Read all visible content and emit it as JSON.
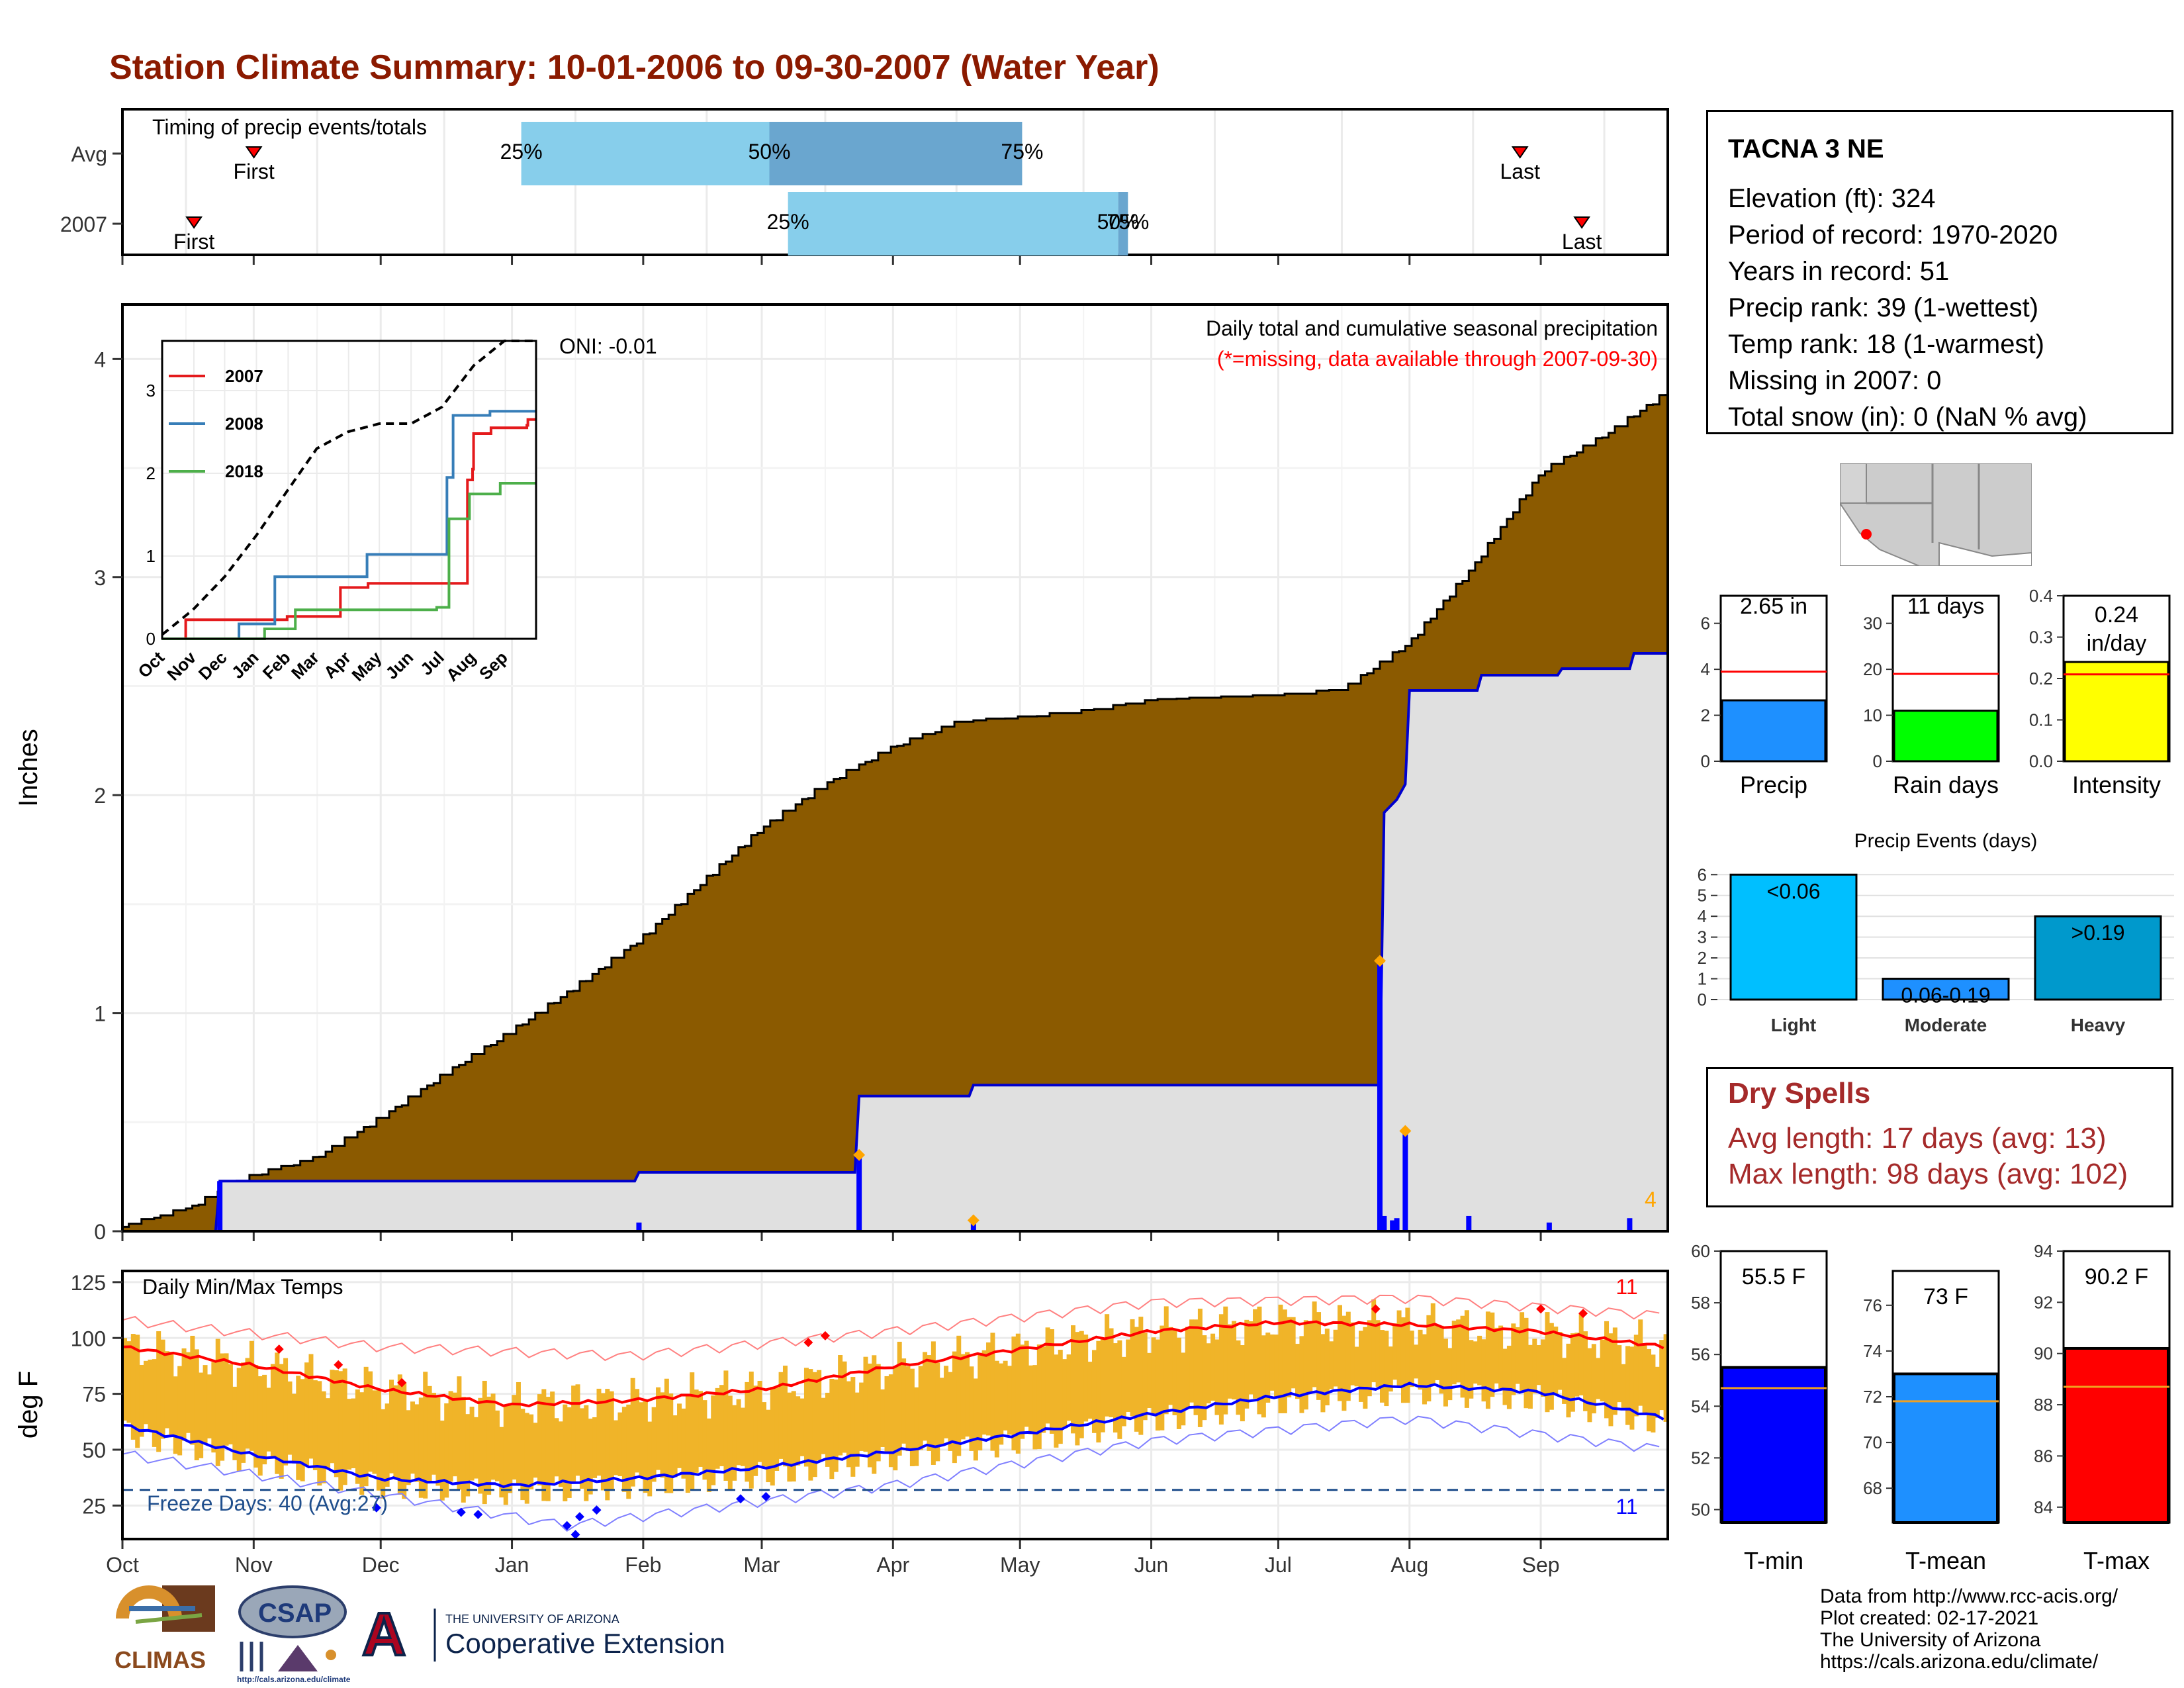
{
  "page": {
    "title": "Station Climate Summary: 10-01-2006 to 09-30-2007 (Water Year)"
  },
  "timing": {
    "title": "Timing of precip events/totals",
    "rows": [
      {
        "label": "Avg",
        "first": 31.05,
        "q25": 94.2,
        "q50": 152.8,
        "q75": 212.5,
        "last": 330.1,
        "first_label": "First",
        "last_label": "Last",
        "q25_label": "25%",
        "q50_label": "50%",
        "q75_label": "75%"
      },
      {
        "label": "2007",
        "first": 16.9,
        "q25": 157.2,
        "q50": 235.2,
        "q75": 237.5,
        "last": 344.7,
        "first_label": "First",
        "last_label": "Last",
        "q25_label": "25%",
        "q50_label": "50%",
        "q75_label": "75%"
      }
    ]
  },
  "main_plot": {
    "ylabel": "Inches",
    "annotation": "Daily total and cumulative seasonal precipitation",
    "missing_note": "(*=missing, data available through 2007-09-30)",
    "oni": "ONI: -0.01",
    "event_count": "4",
    "yticks": [
      "0",
      "1",
      "2",
      "3",
      "4"
    ]
  },
  "inset": {
    "legend": [
      {
        "label": "2007",
        "color": "#e41a1c"
      },
      {
        "label": "2008",
        "color": "#377eb8"
      },
      {
        "label": "2018",
        "color": "#4daf4a"
      }
    ],
    "xticks": [
      "Oct",
      "Nov",
      "Dec",
      "Jan",
      "Feb",
      "Mar",
      "Apr",
      "May",
      "Jun",
      "Jul",
      "Aug",
      "Sep"
    ],
    "yticks": [
      "0",
      "1",
      "2",
      "3"
    ]
  },
  "temp_plot": {
    "ylabel": "deg F",
    "title": "Daily Min/Max Temps",
    "freeze_label": "Freeze Days: 40 (Avg:27)",
    "count_top": "11",
    "count_bottom": "11",
    "yticks": [
      "25",
      "50",
      "75",
      "100",
      "125"
    ],
    "xticks": [
      "Oct",
      "Nov",
      "Dec",
      "Jan",
      "Feb",
      "Mar",
      "Apr",
      "May",
      "Jun",
      "Jul",
      "Aug",
      "Sep"
    ]
  },
  "station": {
    "name": "TACNA 3 NE",
    "lines": [
      "Elevation (ft): 324",
      "Period of record: 1970-2020",
      "Years in record: 51",
      "Precip rank: 39 (1-wettest)",
      "Temp rank: 18 (1-warmest)",
      "Missing in 2007: 0",
      "Total snow (in): 0 (NaN % avg)"
    ]
  },
  "mini_bars": [
    {
      "label": "Precip",
      "value_label": "2.65 in",
      "value": 2.65,
      "avg": 3.9,
      "ymax": 7.2,
      "ticks": [
        "0",
        "2",
        "4",
        "6"
      ],
      "color": "#1e90ff"
    },
    {
      "label": "Rain days",
      "value_label": "11 days",
      "value": 11,
      "avg": 19,
      "ymax": 36,
      "ticks": [
        "0",
        "10",
        "20",
        "30"
      ],
      "color": "#00ff00"
    },
    {
      "label": "Intensity",
      "value_label": "0.24 in/day",
      "value": 0.24,
      "avg": 0.21,
      "ymax": 0.4,
      "ticks": [
        "0.0",
        "0.1",
        "0.2",
        "0.3",
        "0.4"
      ],
      "color": "#ffff00"
    }
  ],
  "events": {
    "title": "Precip Events (days)",
    "categories": [
      "Light",
      "Moderate",
      "Heavy"
    ],
    "values": [
      6,
      1,
      4
    ],
    "labels": [
      "<0.06",
      "0.06-0.19",
      ">0.19"
    ],
    "colors": [
      "#00bfff",
      "#1e90ff",
      "#0099cc"
    ],
    "ticks": [
      "0",
      "1",
      "2",
      "3",
      "4",
      "5",
      "6"
    ]
  },
  "dry_spells": {
    "title": "Dry Spells",
    "avg": "Avg length: 17 days (avg: 13)",
    "max": "Max length: 98 days (avg: 102)"
  },
  "temp_bars": [
    {
      "label": "T-min",
      "value_label": "55.5 F",
      "value": 55.5,
      "avg": 54.7,
      "ymin": 49.5,
      "ymax": 60.0,
      "ticks": [
        "50",
        "52",
        "54",
        "56",
        "58",
        "60"
      ],
      "color": "#0000ff"
    },
    {
      "label": "T-mean",
      "value_label": "73 F",
      "value": 73.0,
      "avg": 71.8,
      "ymin": 66.5,
      "ymax": 77.5,
      "ticks": [
        "68",
        "70",
        "72",
        "74",
        "76"
      ],
      "color": "#1e90ff"
    },
    {
      "label": "T-max",
      "value_label": "90.2 F",
      "value": 90.2,
      "avg": 88.7,
      "ymin": 83.4,
      "ymax": 94.0,
      "ticks": [
        "84",
        "86",
        "88",
        "90",
        "92",
        "94"
      ],
      "color": "#ff0000"
    }
  ],
  "credits": [
    "Data from http://www.rcc-acis.org/",
    "Plot created: 02-17-2021",
    "The University of Arizona",
    "https://cals.arizona.edu/climate/"
  ],
  "logos": {
    "climas": "CLIMAS",
    "csap": "CSAP",
    "csap_url": "http://cals.arizona.edu/climate",
    "ua_small": "THE UNIVERSITY OF ARIZONA",
    "ua_big": "Cooperative Extension",
    "ua_letter": "A"
  },
  "chart_data": [
    {
      "type": "bar",
      "title": "Timing of precip events/totals",
      "categories": [
        "Avg",
        "2007"
      ],
      "series": [
        {
          "name": "First",
          "values": [
            31,
            17
          ]
        },
        {
          "name": "25%",
          "values": [
            94,
            157
          ]
        },
        {
          "name": "50%",
          "values": [
            153,
            235
          ]
        },
        {
          "name": "75%",
          "values": [
            212,
            237
          ]
        },
        {
          "name": "Last",
          "values": [
            330,
            345
          ]
        }
      ]
    },
    {
      "type": "area",
      "title": "Daily total and cumulative seasonal precipitation",
      "ylabel": "Inches",
      "ylim": [
        0,
        4.25
      ],
      "xlabel": "",
      "xlim": [
        0,
        365
      ],
      "series": [
        {
          "name": "Avg cumulative",
          "x": [
            0,
            15,
            30,
            45,
            61,
            76,
            92,
            107,
            123,
            138,
            151,
            166,
            182,
            197,
            212,
            227,
            243,
            258,
            273,
            288,
            304,
            319,
            335,
            350,
            365
          ],
          "values": [
            0.02,
            0.1,
            0.25,
            0.33,
            0.52,
            0.72,
            0.92,
            1.12,
            1.35,
            1.62,
            1.85,
            2.05,
            2.22,
            2.33,
            2.35,
            2.38,
            2.43,
            2.44,
            2.45,
            2.48,
            2.7,
            3.05,
            3.48,
            3.65,
            3.85
          ]
        },
        {
          "name": "2007 cumulative",
          "x": [
            0,
            22,
            23,
            121,
            122,
            173,
            174,
            200,
            201,
            297,
            298,
            301,
            303,
            304,
            320,
            321,
            339,
            340,
            356,
            357,
            365
          ],
          "values": [
            0,
            0,
            0.23,
            0.23,
            0.27,
            0.27,
            0.62,
            0.62,
            0.67,
            0.67,
            1.92,
            1.98,
            2.05,
            2.48,
            2.48,
            2.55,
            2.55,
            2.58,
            2.58,
            2.65,
            2.65
          ]
        },
        {
          "name": "2007 daily",
          "x": [
            23,
            122,
            174,
            201,
            297,
            298,
            300,
            301,
            303,
            318,
            337,
            356
          ],
          "values": [
            0.23,
            0.04,
            0.35,
            0.05,
            1.24,
            0.07,
            0.05,
            0.06,
            0.46,
            0.07,
            0.04,
            0.06
          ]
        }
      ]
    },
    {
      "type": "line",
      "title": "",
      "xticks": [
        "Oct",
        "Nov",
        "Dec",
        "Jan",
        "Feb",
        "Mar",
        "Apr",
        "May",
        "Jun",
        "Jul",
        "Aug",
        "Sep"
      ],
      "ylim": [
        0,
        4.1
      ],
      "series": [
        {
          "name": "Avg",
          "x": [
            0,
            30,
            61,
            92,
            120,
            151,
            181,
            212,
            243,
            273,
            304,
            334,
            365
          ],
          "values": [
            0.05,
            0.35,
            0.75,
            1.25,
            1.75,
            2.3,
            2.5,
            2.6,
            2.6,
            2.8,
            3.3,
            3.8,
            4.1
          ]
        },
        {
          "name": "2007",
          "x": [
            0,
            22,
            23,
            121,
            122,
            173,
            174,
            200,
            201,
            297,
            298,
            303,
            304,
            320,
            321,
            356,
            357,
            365
          ],
          "values": [
            0,
            0,
            0.23,
            0.23,
            0.27,
            0.27,
            0.62,
            0.62,
            0.67,
            0.67,
            1.92,
            2.05,
            2.48,
            2.48,
            2.55,
            2.58,
            2.65,
            2.65
          ]
        },
        {
          "name": "2008",
          "x": [
            0,
            60,
            75,
            110,
            180,
            200,
            262,
            278,
            284,
            300,
            320,
            365
          ],
          "values": [
            0,
            0,
            0.18,
            0.75,
            0.75,
            1.02,
            1.02,
            1.95,
            2.7,
            2.7,
            2.75,
            2.75
          ]
        },
        {
          "name": "2018",
          "x": [
            0,
            100,
            130,
            200,
            268,
            280,
            300,
            330,
            365
          ],
          "values": [
            0,
            0.12,
            0.35,
            0.35,
            0.38,
            1.45,
            1.75,
            1.88,
            1.88
          ]
        }
      ]
    },
    {
      "type": "line",
      "title": "Daily Min/Max Temps",
      "ylabel": "deg F",
      "ylim": [
        10,
        130
      ],
      "xticks": [
        "Oct",
        "Nov",
        "Dec",
        "Jan",
        "Feb",
        "Mar",
        "Apr",
        "May",
        "Jun",
        "Jul",
        "Aug",
        "Sep"
      ],
      "series": [
        {
          "name": "Avg max",
          "x": [
            0,
            30,
            61,
            92,
            120,
            151,
            181,
            212,
            243,
            273,
            304,
            334,
            365
          ],
          "values": [
            96,
            88,
            77,
            70,
            72,
            77,
            87,
            95,
            103,
            107,
            106,
            103,
            96
          ]
        },
        {
          "name": "Avg min",
          "x": [
            0,
            30,
            61,
            92,
            120,
            151,
            181,
            212,
            243,
            273,
            304,
            334,
            365
          ],
          "values": [
            61,
            48,
            37,
            34,
            37,
            42,
            49,
            57,
            66,
            74,
            79,
            76,
            64
          ]
        },
        {
          "name": "Record max",
          "x": [
            0,
            61,
            120,
            181,
            243,
            304,
            365
          ],
          "values": [
            108,
            96,
            92,
            103,
            116,
            118,
            110
          ]
        },
        {
          "name": "Record min",
          "x": [
            0,
            61,
            105,
            181,
            243,
            304,
            365
          ],
          "values": [
            48,
            30,
            16,
            34,
            54,
            64,
            50
          ]
        },
        {
          "name": "Freeze line",
          "x": [
            0,
            365
          ],
          "values": [
            32,
            32
          ]
        }
      ]
    },
    {
      "type": "bar",
      "categories": [
        "Precip"
      ],
      "values": [
        2.65
      ],
      "avg": 3.9,
      "ylim": [
        0,
        7.2
      ]
    },
    {
      "type": "bar",
      "categories": [
        "Rain days"
      ],
      "values": [
        11
      ],
      "avg": 19,
      "ylim": [
        0,
        36
      ]
    },
    {
      "type": "bar",
      "categories": [
        "Intensity"
      ],
      "values": [
        0.24
      ],
      "avg": 0.21,
      "ylim": [
        0,
        0.4
      ]
    },
    {
      "type": "bar",
      "title": "Precip Events (days)",
      "categories": [
        "Light",
        "Moderate",
        "Heavy"
      ],
      "values": [
        6,
        1,
        4
      ],
      "ylim": [
        0,
        6.2
      ]
    },
    {
      "type": "bar",
      "categories": [
        "T-min"
      ],
      "values": [
        55.5
      ],
      "avg": 54.7,
      "ylim": [
        49.5,
        60
      ]
    },
    {
      "type": "bar",
      "categories": [
        "T-mean"
      ],
      "values": [
        73
      ],
      "avg": 71.8,
      "ylim": [
        66.5,
        77.5
      ]
    },
    {
      "type": "bar",
      "categories": [
        "T-max"
      ],
      "values": [
        90.2
      ],
      "avg": 88.7,
      "ylim": [
        83.4,
        94
      ]
    }
  ]
}
